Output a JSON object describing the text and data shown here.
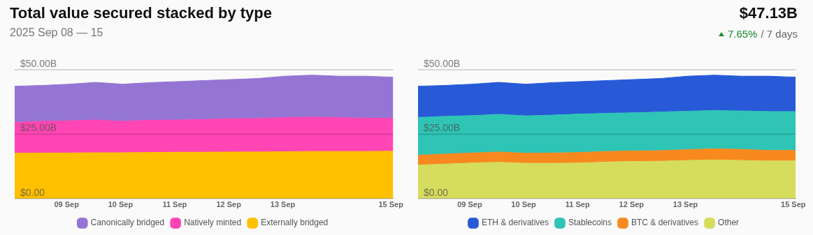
{
  "chart_data": [
    {
      "type": "area",
      "title": "Total value secured stacked by type",
      "subtitle": "2025 Sep 08 — 15",
      "annotations": [
        "$47.13B",
        "7.65%",
        "/ 7 days"
      ],
      "stacked": true,
      "legend": "bottom",
      "grid": "y",
      "marker": "none",
      "x": [
        "2025-09-08T01:00",
        "2025-09-08T13:00",
        "2025-09-09T01:00",
        "2025-09-09T13:00",
        "2025-09-10T01:00",
        "2025-09-10T13:00",
        "2025-09-11T01:00",
        "2025-09-11T13:00",
        "2025-09-12T01:00",
        "2025-09-12T13:00",
        "2025-09-13T01:00",
        "2025-09-13T13:00",
        "2025-09-14T01:00",
        "2025-09-14T13:00",
        "2025-09-15T01:00"
      ],
      "xlim": [
        "2025-09-08T01:00",
        "2025-09-15T01:00"
      ],
      "xticks": [
        {
          "value": "2025-09-09",
          "label": "09 Sep"
        },
        {
          "value": "2025-09-10",
          "label": "10 Sep"
        },
        {
          "value": "2025-09-11",
          "label": "11 Sep"
        },
        {
          "value": "2025-09-12",
          "label": "12 Sep"
        },
        {
          "value": "2025-09-13",
          "label": "13 Sep"
        },
        {
          "value": "2025-09-15",
          "label": "15 Sep"
        }
      ],
      "ylim": [
        0,
        50
      ],
      "yticks": [
        {
          "value": 0,
          "label": "$0.00"
        },
        {
          "value": 25,
          "label": "$25.00B"
        },
        {
          "value": 50,
          "label": "$50.00B"
        }
      ],
      "series": [
        {
          "name": "Externally bridged",
          "color": "#ffc000",
          "values": [
            17.6,
            17.7,
            17.7,
            17.8,
            17.8,
            17.9,
            18.0,
            18.0,
            18.1,
            18.1,
            18.2,
            18.3,
            18.3,
            18.3,
            18.4
          ]
        },
        {
          "name": "Natively minted",
          "color": "#ff46b4",
          "values": [
            12.0,
            12.3,
            12.5,
            12.7,
            12.2,
            12.5,
            12.5,
            12.7,
            12.9,
            13.0,
            13.2,
            13.3,
            13.1,
            12.9,
            12.8
          ]
        },
        {
          "name": "Canonically bridged",
          "color": "#9575d4",
          "values": [
            14.0,
            13.9,
            14.2,
            14.6,
            14.4,
            14.6,
            14.9,
            15.1,
            15.2,
            15.5,
            16.1,
            16.3,
            16.1,
            16.3,
            15.9
          ]
        }
      ]
    },
    {
      "type": "area",
      "stacked": true,
      "legend": "bottom",
      "grid": "y",
      "marker": "none",
      "x": [
        "2025-09-08T01:00",
        "2025-09-08T13:00",
        "2025-09-09T01:00",
        "2025-09-09T13:00",
        "2025-09-10T01:00",
        "2025-09-10T13:00",
        "2025-09-11T01:00",
        "2025-09-11T13:00",
        "2025-09-12T01:00",
        "2025-09-12T13:00",
        "2025-09-13T01:00",
        "2025-09-13T13:00",
        "2025-09-14T01:00",
        "2025-09-14T13:00",
        "2025-09-15T01:00"
      ],
      "xlim": [
        "2025-09-08T01:00",
        "2025-09-15T01:00"
      ],
      "xticks": [
        {
          "value": "2025-09-09",
          "label": "09 Sep"
        },
        {
          "value": "2025-09-10",
          "label": "10 Sep"
        },
        {
          "value": "2025-09-11",
          "label": "11 Sep"
        },
        {
          "value": "2025-09-12",
          "label": "12 Sep"
        },
        {
          "value": "2025-09-13",
          "label": "13 Sep"
        },
        {
          "value": "2025-09-15",
          "label": "15 Sep"
        }
      ],
      "ylim": [
        0,
        50
      ],
      "yticks": [
        {
          "value": 0,
          "label": "$0.00"
        },
        {
          "value": 25,
          "label": "$25.00B"
        },
        {
          "value": 50,
          "label": "$50.00B"
        }
      ],
      "series": [
        {
          "name": "Other",
          "color": "#d6dc5c",
          "values": [
            13.0,
            13.4,
            13.8,
            14.1,
            13.7,
            13.7,
            13.8,
            14.2,
            14.4,
            14.5,
            14.8,
            15.0,
            14.8,
            14.6,
            14.6
          ]
        },
        {
          "name": "BTC & derivatives",
          "color": "#f7891f",
          "values": [
            3.8,
            3.9,
            3.9,
            4.0,
            3.9,
            4.0,
            4.1,
            4.1,
            4.1,
            4.1,
            4.2,
            4.3,
            4.3,
            4.1,
            4.1
          ]
        },
        {
          "name": "Stablecoins",
          "color": "#2ec4b6",
          "values": [
            14.7,
            14.6,
            14.5,
            14.6,
            14.5,
            14.7,
            14.9,
            14.8,
            14.8,
            15.0,
            14.9,
            14.9,
            14.9,
            15.1,
            15.1
          ]
        },
        {
          "name": "ETH & derivatives",
          "color": "#285ad8",
          "values": [
            12.1,
            12.0,
            12.2,
            12.4,
            12.3,
            12.6,
            12.6,
            12.7,
            12.9,
            13.0,
            13.6,
            13.7,
            13.5,
            13.7,
            13.3
          ]
        }
      ]
    }
  ]
}
